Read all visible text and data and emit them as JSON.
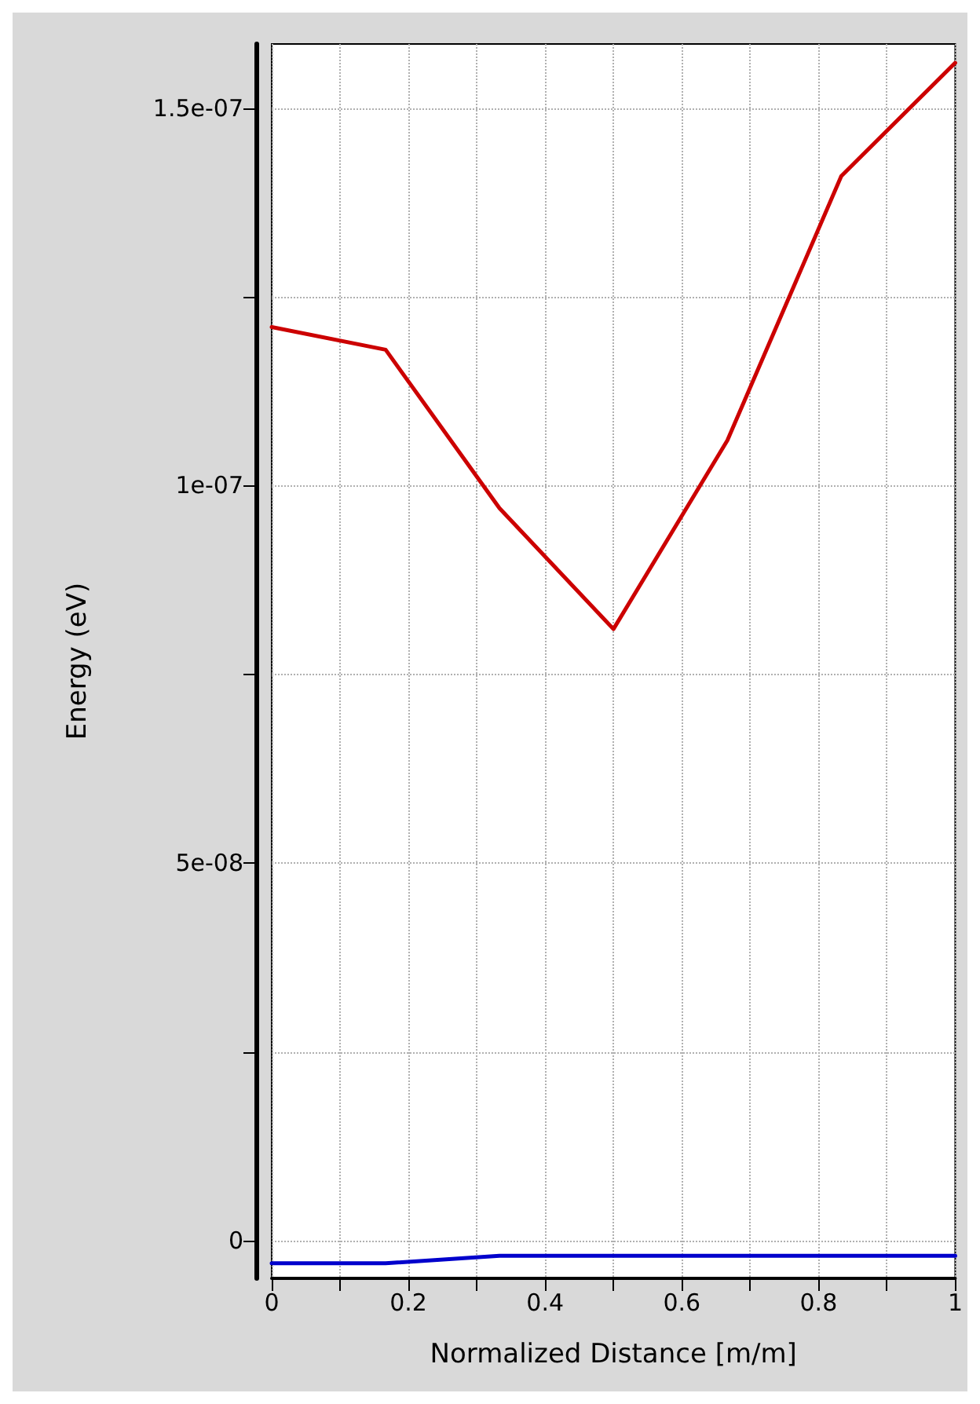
{
  "chart_data": {
    "type": "line",
    "xlabel": "Normalized Distance [m/m]",
    "ylabel": "Energy (eV)",
    "x": [
      0,
      0.1667,
      0.3333,
      0.5,
      0.6667,
      0.8333,
      1
    ],
    "series": [
      {
        "color": "#cc0000",
        "values": [
          1.21e-07,
          1.18e-07,
          9.7e-08,
          8.1e-08,
          1.06e-07,
          1.41e-07,
          1.56e-07
        ]
      },
      {
        "color": "#0000cc",
        "values": [
          -3e-09,
          -3e-09,
          -2e-09,
          -2e-09,
          -2e-09,
          -2e-09,
          -2e-09
        ]
      }
    ],
    "xlim": [
      0,
      1
    ],
    "ylim": [
      -5e-09,
      1.585e-07
    ],
    "xticks": [
      0,
      {
        "value": 0.1,
        "label": null
      },
      0.2,
      {
        "value": 0.3,
        "label": null
      },
      0.4,
      {
        "value": 0.5,
        "label": null
      },
      0.6,
      {
        "value": 0.7,
        "label": null
      },
      0.8,
      {
        "value": 0.9,
        "label": null
      },
      1
    ],
    "yticks": [
      {
        "value": 0,
        "label": "0"
      },
      {
        "value": 2.5e-08,
        "label": null
      },
      {
        "value": 5e-08,
        "label": "5e-08"
      },
      {
        "value": 7.5e-08,
        "label": null
      },
      {
        "value": 1e-07,
        "label": "1e-07"
      },
      {
        "value": 1.25e-07,
        "label": null
      },
      {
        "value": 1.5e-07,
        "label": "1.5e-07"
      }
    ],
    "grid": true,
    "marker": "none",
    "line_style": "solid"
  }
}
